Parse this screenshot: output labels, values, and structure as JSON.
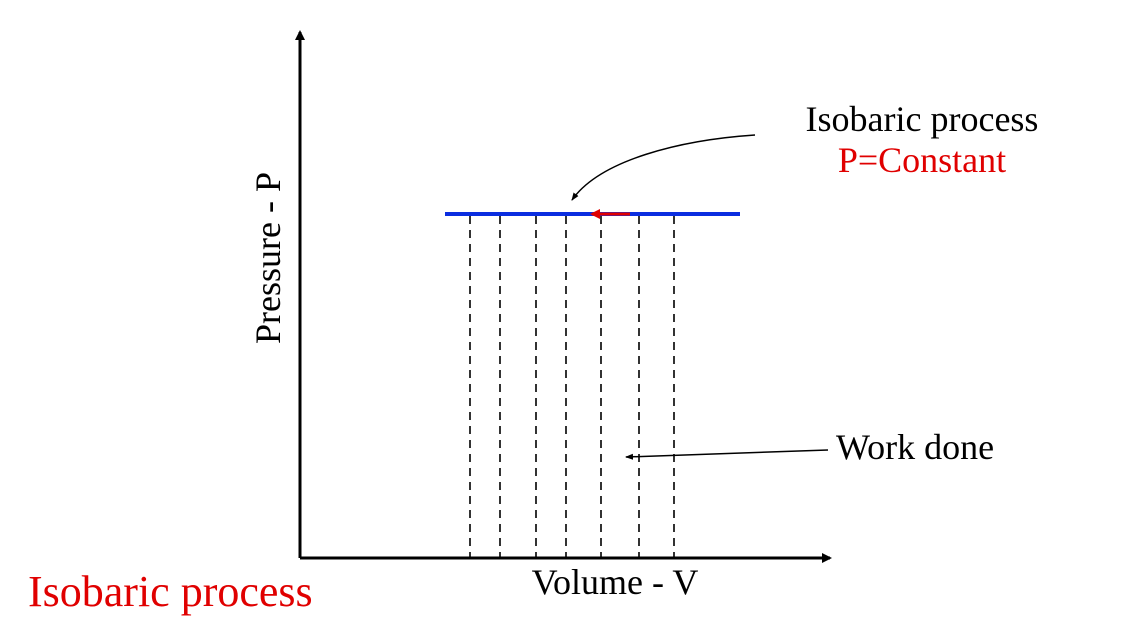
{
  "axes": {
    "y_label": "Pressure - P",
    "x_label": "Volume - V"
  },
  "annotations": {
    "process": "Isobaric process",
    "condition": "P=Constant",
    "work": "Work done"
  },
  "caption": "Isobaric process"
}
